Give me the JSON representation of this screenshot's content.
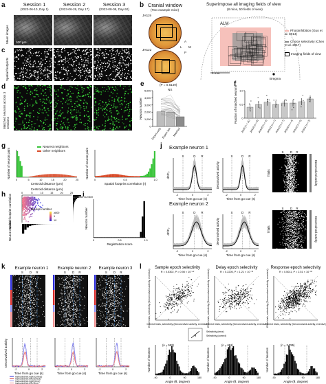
{
  "panel_labels": [
    "a",
    "b",
    "c",
    "d",
    "e",
    "f",
    "g",
    "h",
    "i",
    "j",
    "k",
    "l"
  ],
  "panel_a": {
    "sessions": [
      {
        "title": "Session 1",
        "date": "(2023-06-10, Day 1)"
      },
      {
        "title": "Session 2",
        "date": "(2023-06-26, Day 17)"
      },
      {
        "title": "Session 3",
        "date": "(2023-08-08, Day 60)"
      }
    ],
    "row_labels": [
      "Mean images",
      "Spatial footprints",
      "Matched neurons across 3 sessions"
    ],
    "scale": "100 μm"
  },
  "panel_b": {
    "left_title": "Cranial window",
    "left_sub": "(Two example mice)",
    "mice": [
      "JH119",
      "JH122"
    ],
    "right_title": "Superimpose all imaging fields of view",
    "right_sub": "(8 mice, 50 fields of view)",
    "region": "ALM",
    "legend": [
      "Photoinhibition (Guo et al. 2014)",
      "Choice selectivity (Chen et al. 2017)",
      "Imaging fields of view"
    ],
    "scale": "1 mm",
    "bregma": "Bregma",
    "compass": [
      "A",
      "L",
      "P",
      "M"
    ]
  },
  "panel_e": {
    "stat": "(P = 0.6149)",
    "ns": "NS",
    "ylabel": "Neuron number",
    "categories": [
      "Expert early",
      "Expert late",
      "Matched"
    ],
    "values": [
      2050,
      2000,
      1350
    ],
    "ylim": [
      0,
      5000
    ],
    "yticks": [
      "0",
      "1,000",
      "2,000",
      "3,000",
      "4,000",
      "5,000"
    ]
  },
  "panel_f": {
    "ylabel": "Fraction of matched neurons",
    "categories": [
      "JH29 (n = 11)",
      "JH119 (n = 8)",
      "JH120 (n = 5)",
      "JH122 (n = 7)",
      "JH123 (n = 7)",
      "JH129 (n = 4)",
      "JH130 (n = 5)",
      "JH151 (n = 3)"
    ],
    "values": [
      0.4,
      0.5,
      0.58,
      0.5,
      0.55,
      0.55,
      0.6,
      0.7
    ],
    "ylim": [
      0,
      1
    ],
    "yticks": [
      "0",
      "0.5",
      "1.0"
    ]
  },
  "panel_g": {
    "legend": [
      "Nearest neighbors",
      "Other neighbors"
    ],
    "left_ylabel": "Number of neuron pairs",
    "left_xlabel": "Centroid distance (μm)",
    "left_xticks": [
      "0",
      "5",
      "10",
      "15",
      "20",
      "25"
    ],
    "right_ylabel": "Number of neuron pairs",
    "right_xlabel": "Spatial footprint correlation (r)",
    "right_xticks": [
      "0",
      "0.5",
      "1.0"
    ]
  },
  "panel_h": {
    "xlabel": "Centroid distance (μm)",
    "xticks": [
      "0",
      "5",
      "10",
      "15",
      "20",
      "25"
    ],
    "ylabel": "Spatial footprint correlation",
    "colorbar_label": "Neuron number",
    "colorbar_ticks": [
      "≥800",
      "1",
      "10"
    ],
    "side_label": "Neuron number"
  },
  "panel_i": {
    "ylabel": "Neuron number",
    "xlabel": "Registration score",
    "xticks": [
      "0",
      "0.5",
      "1.0"
    ]
  },
  "panel_j": {
    "neurons": [
      "Example neuron 1",
      "Example neuron 2"
    ],
    "epochs": [
      "S",
      "D",
      "R"
    ],
    "ylabel": "dF/F₀",
    "mid_ylabel": "Deconvolved activity",
    "xlabel": "Time from go cue (s)",
    "xticks": [
      "-2",
      "0",
      "2"
    ],
    "raster_label": "Trials",
    "cbar_label": "Deconvolved activity"
  },
  "panel_k": {
    "neurons": [
      "Example neuron 1",
      "Example neuron 2",
      "Example neuron 3"
    ],
    "epochs": [
      "S",
      "D",
      "R"
    ],
    "ylabel": "Deconvolved activity",
    "xlabel": "Time from go cue (s)",
    "xticks": [
      "-2",
      "0",
      "2"
    ],
    "legend": [
      "Instructed lick right (correct)",
      "Instructed lick left (correct)",
      "Instructed lick right (error)",
      "Instructed lick left (error)"
    ],
    "legend_colors": [
      "#2a2ad6",
      "#d62a2a",
      "#8f8fef",
      "#ef8f8f"
    ]
  },
  "panel_l": {
    "titles": [
      "Sample epoch selectivity",
      "Delay epoch selectivity",
      "Response epoch selectivity"
    ],
    "stats": [
      "R = 0.5302, P = 0.98 × 10⁻⁴²",
      "R = 0.2205, P = 1.21 × 10⁻¹²",
      "R = 0.5011, P = 2.51 × 10⁻⁸²"
    ],
    "scatter_ylabel": "Error trials, selectivity (Deconvolved activity, events/s)",
    "scatter_xlabel": "Correct trials, selectivity (Deconvolved activity, events/s)",
    "hist_counts": [
      "(n = 592)",
      "(n = 651)",
      "(n = 2,755)"
    ],
    "hist_ylabel": "Number of neurons",
    "hist_xlabel": "Angle (θ, degree)",
    "hist_xticks": [
      "-90",
      "-45",
      "0",
      "45",
      "90",
      "135",
      "180"
    ],
    "inset": [
      "Selectivity (error)",
      "Selectivity (correct)",
      "θ"
    ]
  }
}
